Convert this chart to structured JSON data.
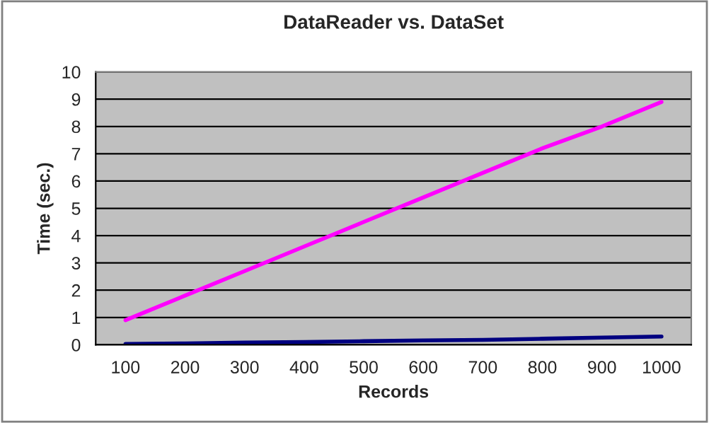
{
  "chart_data": {
    "type": "line",
    "title": "DataReader vs. DataSet",
    "xlabel": "Records",
    "ylabel": "Time (sec.)",
    "categories": [
      "100",
      "200",
      "300",
      "400",
      "500",
      "600",
      "700",
      "800",
      "900",
      "1000"
    ],
    "series": [
      {
        "color": "#ff00ff",
        "values": [
          0.9,
          1.8,
          2.7,
          3.6,
          4.5,
          5.4,
          6.3,
          7.2,
          8.0,
          8.9
        ]
      },
      {
        "color": "#000080",
        "values": [
          0.03,
          0.05,
          0.08,
          0.1,
          0.13,
          0.16,
          0.18,
          0.22,
          0.26,
          0.3
        ]
      }
    ],
    "ylim": [
      0,
      10
    ],
    "yticks": [
      0,
      1,
      2,
      3,
      4,
      5,
      6,
      7,
      8,
      9,
      10
    ],
    "grid": "y",
    "legend": false,
    "marker": "none",
    "line_style": "solid"
  }
}
